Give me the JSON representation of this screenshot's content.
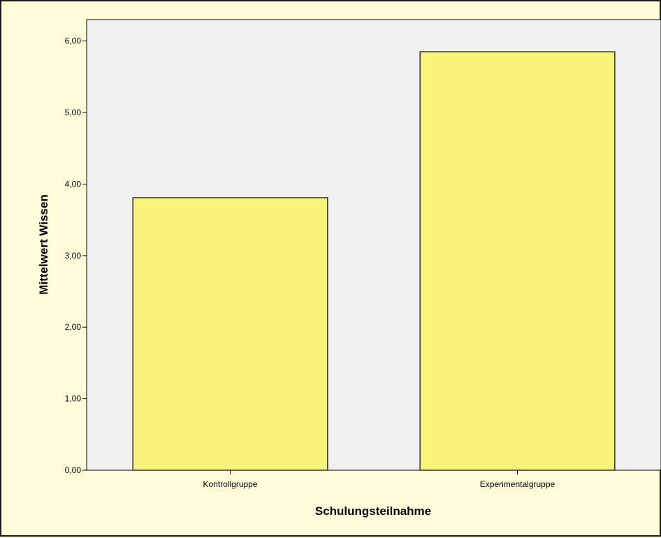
{
  "chart_data": {
    "type": "bar",
    "categories": [
      "Kontrollgruppe",
      "Experimentalgruppe"
    ],
    "values": [
      3.81,
      5.85
    ],
    "xlabel": "Schulungsteilnahme",
    "ylabel": "Mittelwert Wissen",
    "ylim": [
      0,
      6.3
    ],
    "yticks": [
      0,
      1,
      2,
      3,
      4,
      5,
      6
    ],
    "ytick_labels": [
      "0,00",
      "1,00",
      "2,00",
      "3,00",
      "4,00",
      "5,00",
      "6,00"
    ],
    "grid": false,
    "legend": "none",
    "colors": {
      "bar_fill": "#f8f47a",
      "bar_stroke": "#333333",
      "plot_background": "#f0f0f0",
      "page_background": "#fffdd9"
    }
  }
}
